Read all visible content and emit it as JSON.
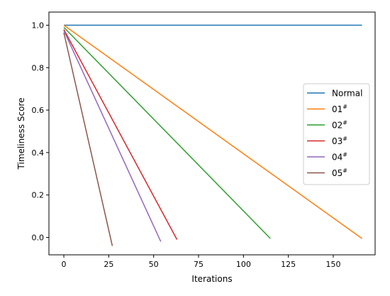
{
  "chart_data": {
    "type": "line",
    "title": "",
    "xlabel": "Iterations",
    "ylabel": "Timeliness Score",
    "xlim": [
      -8.3,
      173.3
    ],
    "ylim": [
      -0.082,
      1.062
    ],
    "xticks": [
      0,
      25,
      50,
      75,
      100,
      125,
      150
    ],
    "xtick_labels": [
      "0",
      "25",
      "50",
      "75",
      "100",
      "125",
      "150"
    ],
    "yticks": [
      0.0,
      0.2,
      0.4,
      0.6,
      0.8,
      1.0
    ],
    "ytick_labels": [
      "0.0",
      "0.2",
      "0.4",
      "0.6",
      "0.8",
      "1.0"
    ],
    "grid": false,
    "legend_position": "center-right",
    "series": [
      {
        "name": "Normal",
        "sup": "",
        "color": "#1f77b4",
        "points": [
          [
            0,
            1.0
          ],
          [
            166,
            1.0
          ]
        ]
      },
      {
        "name": "01",
        "sup": "#",
        "color": "#ff7f0e",
        "points": [
          [
            0,
            1.0
          ],
          [
            166,
            -0.005
          ]
        ]
      },
      {
        "name": "02",
        "sup": "#",
        "color": "#2ca02c",
        "points": [
          [
            0,
            0.99
          ],
          [
            115,
            -0.005
          ]
        ]
      },
      {
        "name": "03",
        "sup": "#",
        "color": "#d62728",
        "points": [
          [
            0,
            0.98
          ],
          [
            63,
            -0.01
          ]
        ]
      },
      {
        "name": "04",
        "sup": "#",
        "color": "#9467bd",
        "points": [
          [
            0,
            0.975
          ],
          [
            54,
            -0.02
          ]
        ]
      },
      {
        "name": "05",
        "sup": "#",
        "color": "#8c564b",
        "points": [
          [
            0,
            0.965
          ],
          [
            27,
            -0.04
          ]
        ]
      }
    ]
  }
}
